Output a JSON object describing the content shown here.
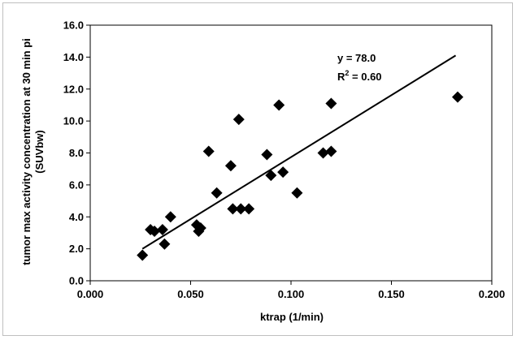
{
  "chart_data": {
    "type": "scatter",
    "title": "",
    "xlabel": "ktrap (1/min)",
    "ylabel_line1": "tumor max activity concentration at 30 min pi",
    "ylabel_line2": "(SUVbw)",
    "xlim": [
      0.0,
      0.2
    ],
    "ylim": [
      0.0,
      16.0
    ],
    "xticks": [
      "0.000",
      "0.050",
      "0.100",
      "0.150",
      "0.200"
    ],
    "yticks": [
      "0.0",
      "2.0",
      "4.0",
      "6.0",
      "8.0",
      "10.0",
      "12.0",
      "14.0",
      "16.0"
    ],
    "grid": false,
    "marker": "diamond",
    "marker_color": "#000000",
    "points": [
      {
        "x": 0.026,
        "y": 1.6
      },
      {
        "x": 0.03,
        "y": 3.2
      },
      {
        "x": 0.032,
        "y": 3.1
      },
      {
        "x": 0.036,
        "y": 3.2
      },
      {
        "x": 0.037,
        "y": 2.3
      },
      {
        "x": 0.04,
        "y": 4.0
      },
      {
        "x": 0.053,
        "y": 3.5
      },
      {
        "x": 0.054,
        "y": 3.1
      },
      {
        "x": 0.055,
        "y": 3.3
      },
      {
        "x": 0.059,
        "y": 8.1
      },
      {
        "x": 0.063,
        "y": 5.5
      },
      {
        "x": 0.07,
        "y": 7.2
      },
      {
        "x": 0.071,
        "y": 4.5
      },
      {
        "x": 0.074,
        "y": 10.1
      },
      {
        "x": 0.075,
        "y": 4.5
      },
      {
        "x": 0.079,
        "y": 4.5
      },
      {
        "x": 0.088,
        "y": 7.9
      },
      {
        "x": 0.09,
        "y": 6.6
      },
      {
        "x": 0.094,
        "y": 11.0
      },
      {
        "x": 0.096,
        "y": 6.8
      },
      {
        "x": 0.103,
        "y": 5.5
      },
      {
        "x": 0.116,
        "y": 8.0
      },
      {
        "x": 0.12,
        "y": 11.1
      },
      {
        "x": 0.12,
        "y": 8.1
      },
      {
        "x": 0.183,
        "y": 11.5
      }
    ],
    "trendline": {
      "x": [
        0.026,
        0.182
      ],
      "y": [
        2.0,
        14.1
      ],
      "color": "#000000"
    },
    "annotation": {
      "equation": "y = 78.0",
      "r2_prefix": "R",
      "r2_exp": "2",
      "r2_value": " = 0.60"
    }
  }
}
